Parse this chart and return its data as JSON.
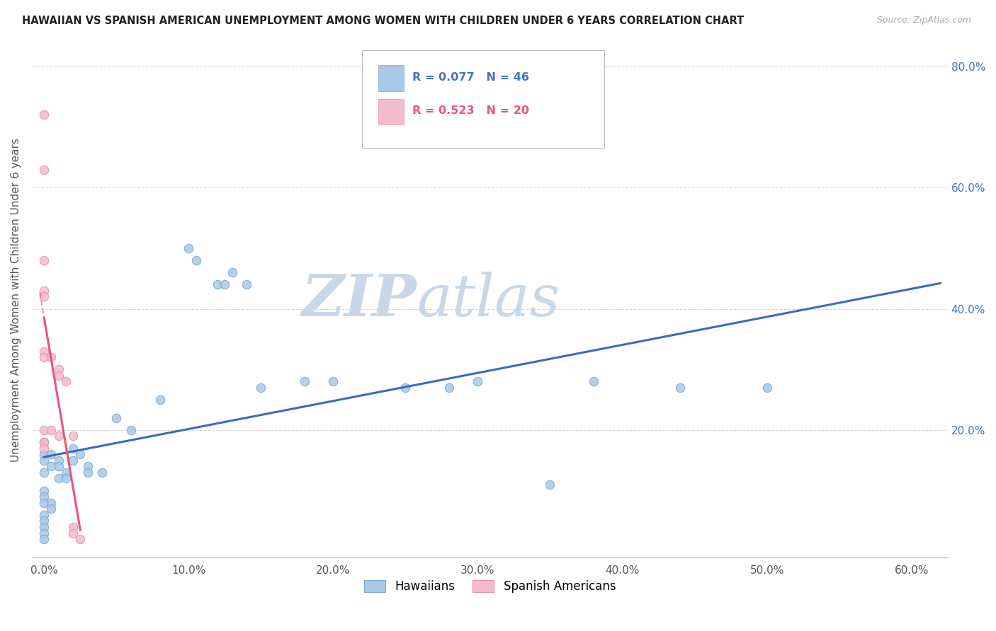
{
  "title": "HAWAIIAN VS SPANISH AMERICAN UNEMPLOYMENT AMONG WOMEN WITH CHILDREN UNDER 6 YEARS CORRELATION CHART",
  "source": "Source: ZipAtlas.com",
  "xlabel_ticks": [
    "0.0%",
    "10.0%",
    "20.0%",
    "30.0%",
    "40.0%",
    "50.0%",
    "60.0%"
  ],
  "xlabel_vals": [
    0.0,
    0.1,
    0.2,
    0.3,
    0.4,
    0.5,
    0.6
  ],
  "ylabel": "Unemployment Among Women with Children Under 6 years",
  "ylabel_ticks_right": [
    "20.0%",
    "40.0%",
    "60.0%",
    "80.0%"
  ],
  "ylabel_vals_right": [
    0.2,
    0.4,
    0.6,
    0.8
  ],
  "R_hawaiian": 0.077,
  "N_hawaiian": 46,
  "R_spanish": 0.523,
  "N_spanish": 20,
  "hawaiian_color": "#A8C8E8",
  "hawaiian_edge": "#7AAAD0",
  "spanish_color": "#F4BBCC",
  "spanish_edge": "#E890A8",
  "trend_hawaiian_color": "#3A6BC4",
  "trend_spanish_color": "#E8557A",
  "hawaiian_points": [
    [
      0.0,
      0.18
    ],
    [
      0.0,
      0.16
    ],
    [
      0.0,
      0.15
    ],
    [
      0.0,
      0.13
    ],
    [
      0.0,
      0.1
    ],
    [
      0.0,
      0.09
    ],
    [
      0.0,
      0.08
    ],
    [
      0.0,
      0.06
    ],
    [
      0.0,
      0.05
    ],
    [
      0.0,
      0.04
    ],
    [
      0.0,
      0.03
    ],
    [
      0.0,
      0.02
    ],
    [
      0.005,
      0.16
    ],
    [
      0.005,
      0.14
    ],
    [
      0.005,
      0.08
    ],
    [
      0.005,
      0.07
    ],
    [
      0.01,
      0.15
    ],
    [
      0.01,
      0.14
    ],
    [
      0.01,
      0.12
    ],
    [
      0.015,
      0.13
    ],
    [
      0.015,
      0.12
    ],
    [
      0.02,
      0.17
    ],
    [
      0.02,
      0.15
    ],
    [
      0.025,
      0.16
    ],
    [
      0.03,
      0.14
    ],
    [
      0.03,
      0.13
    ],
    [
      0.04,
      0.13
    ],
    [
      0.05,
      0.22
    ],
    [
      0.06,
      0.2
    ],
    [
      0.08,
      0.25
    ],
    [
      0.1,
      0.5
    ],
    [
      0.105,
      0.48
    ],
    [
      0.12,
      0.44
    ],
    [
      0.125,
      0.44
    ],
    [
      0.13,
      0.46
    ],
    [
      0.14,
      0.44
    ],
    [
      0.15,
      0.27
    ],
    [
      0.18,
      0.28
    ],
    [
      0.2,
      0.28
    ],
    [
      0.25,
      0.27
    ],
    [
      0.28,
      0.27
    ],
    [
      0.3,
      0.28
    ],
    [
      0.35,
      0.11
    ],
    [
      0.38,
      0.28
    ],
    [
      0.44,
      0.27
    ],
    [
      0.5,
      0.27
    ]
  ],
  "spanish_points": [
    [
      0.0,
      0.72
    ],
    [
      0.0,
      0.63
    ],
    [
      0.0,
      0.48
    ],
    [
      0.0,
      0.43
    ],
    [
      0.0,
      0.42
    ],
    [
      0.0,
      0.33
    ],
    [
      0.0,
      0.32
    ],
    [
      0.005,
      0.32
    ],
    [
      0.0,
      0.2
    ],
    [
      0.005,
      0.2
    ],
    [
      0.0,
      0.18
    ],
    [
      0.0,
      0.17
    ],
    [
      0.01,
      0.3
    ],
    [
      0.01,
      0.29
    ],
    [
      0.01,
      0.19
    ],
    [
      0.015,
      0.28
    ],
    [
      0.02,
      0.19
    ],
    [
      0.02,
      0.04
    ],
    [
      0.02,
      0.03
    ],
    [
      0.025,
      0.02
    ]
  ],
  "background_color": "#FFFFFF",
  "grid_color": "#CCCCCC",
  "watermark_zip": "ZIP",
  "watermark_atlas": "atlas",
  "watermark_color": "#C8D8E8"
}
